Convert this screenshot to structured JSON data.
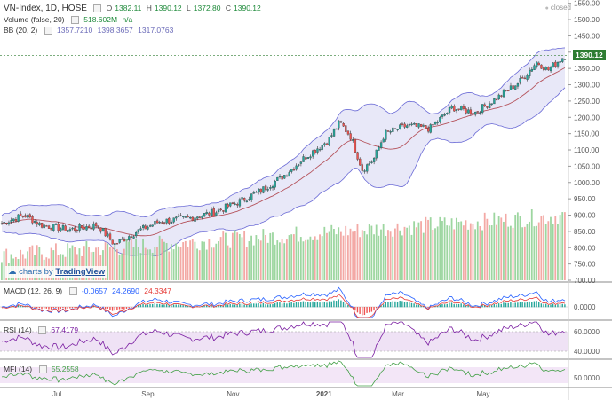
{
  "header": {
    "symbol": "VN-Index, 1D, HOSE",
    "o_label": "O",
    "o_value": "1382.11",
    "h_label": "H",
    "h_value": "1390.12",
    "l_label": "L",
    "l_value": "1372.80",
    "c_label": "C",
    "c_value": "1390.12",
    "status": "closed"
  },
  "volume_legend": {
    "label": "Volume (false, 20)",
    "value": "518.602M",
    "value2": "n/a"
  },
  "bb_legend": {
    "label": "BB (20, 2)",
    "v1": "1357.7210",
    "v2": "1398.3657",
    "v3": "1317.0763"
  },
  "macd_legend": {
    "label": "MACD (12, 26, 9)",
    "v1": "-0.0657",
    "v2": "24.2690",
    "v3": "24.3347"
  },
  "rsi_legend": {
    "label": "RSI (14)",
    "v1": "67.4179"
  },
  "mfi_legend": {
    "label": "MFI (14)",
    "v1": "55.2558"
  },
  "watermark": {
    "prefix": "charts by",
    "brand": "TradingView"
  },
  "colors": {
    "up": "#26a69a",
    "down": "#ef5350",
    "band": "#6b6bd6",
    "band_fill": "#e5e6f7",
    "macd": "#2962ff",
    "signal": "#e53935",
    "rsi": "#7b1fa2",
    "mfi": "#43a047"
  },
  "chart_data": [
    {
      "type": "candlestick",
      "title": "VN-Index, 1D, HOSE",
      "last_price": 1390.12,
      "y_ticks": [
        700,
        750,
        800,
        850,
        900,
        950,
        1000,
        1050,
        1100,
        1150,
        1200,
        1250,
        1300,
        1350,
        1400,
        1450,
        1500,
        1550
      ],
      "x_ticks": [
        "Jul",
        "Sep",
        "Nov",
        "2021",
        "Mar",
        "May"
      ],
      "ylim": [
        700,
        1560
      ],
      "trend": [
        {
          "t": 0,
          "v": 875
        },
        {
          "t": 0.04,
          "v": 900
        },
        {
          "t": 0.07,
          "v": 870
        },
        {
          "t": 0.12,
          "v": 855
        },
        {
          "t": 0.17,
          "v": 870
        },
        {
          "t": 0.2,
          "v": 810
        },
        {
          "t": 0.24,
          "v": 850
        },
        {
          "t": 0.28,
          "v": 880
        },
        {
          "t": 0.33,
          "v": 890
        },
        {
          "t": 0.38,
          "v": 910
        },
        {
          "t": 0.42,
          "v": 940
        },
        {
          "t": 0.46,
          "v": 975
        },
        {
          "t": 0.5,
          "v": 1020
        },
        {
          "t": 0.54,
          "v": 1080
        },
        {
          "t": 0.58,
          "v": 1130
        },
        {
          "t": 0.6,
          "v": 1185
        },
        {
          "t": 0.62,
          "v": 1140
        },
        {
          "t": 0.64,
          "v": 1040
        },
        {
          "t": 0.66,
          "v": 1070
        },
        {
          "t": 0.68,
          "v": 1150
        },
        {
          "t": 0.72,
          "v": 1175
        },
        {
          "t": 0.76,
          "v": 1165
        },
        {
          "t": 0.8,
          "v": 1230
        },
        {
          "t": 0.84,
          "v": 1215
        },
        {
          "t": 0.88,
          "v": 1260
        },
        {
          "t": 0.92,
          "v": 1310
        },
        {
          "t": 0.95,
          "v": 1370
        },
        {
          "t": 0.97,
          "v": 1345
        },
        {
          "t": 1,
          "v": 1390
        }
      ]
    },
    {
      "type": "bar",
      "title": "Volume (false, 20)",
      "note": "volume bars, scale n/a"
    },
    {
      "type": "line",
      "title": "MACD (12, 26, 9)",
      "y_ticks": [
        0.0
      ],
      "values": [
        -0.0657,
        24.269,
        24.3347
      ]
    },
    {
      "type": "line",
      "title": "RSI (14)",
      "y_ticks": [
        40.0,
        60.0
      ],
      "last": 67.4179
    },
    {
      "type": "line",
      "title": "MFI (14)",
      "y_ticks": [
        50.0
      ],
      "last": 55.2558
    }
  ]
}
